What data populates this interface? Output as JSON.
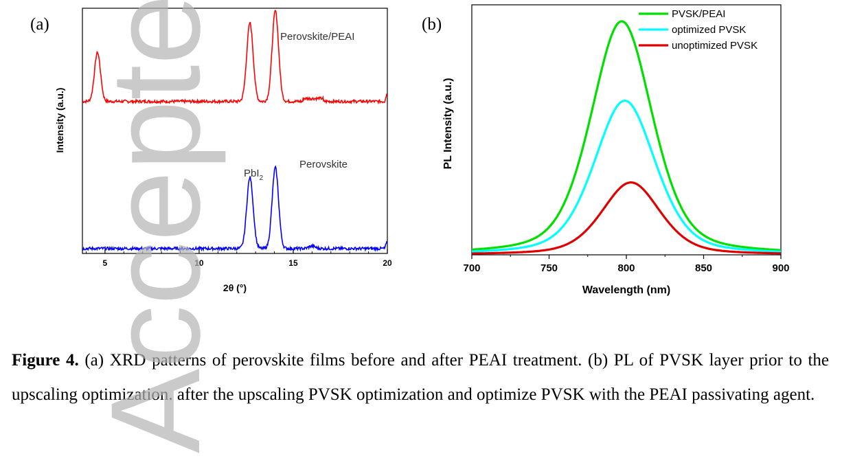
{
  "watermark": "Accepted",
  "panels": {
    "a": {
      "label": "(a)"
    },
    "b": {
      "label": "(b)"
    }
  },
  "chart_data": [
    {
      "type": "line",
      "panel": "a",
      "xlabel": "2θ (°)",
      "ylabel": "Intensity (a.u.)",
      "xlim": [
        3.8,
        20
      ],
      "xticks": [
        5,
        10,
        15,
        20
      ],
      "yticks": "none",
      "annotations": [
        "Perovskite/PEAI",
        "Perovskite",
        "PbI2"
      ],
      "series": [
        {
          "name": "Perovskite/PEAI",
          "color": "#ff0000",
          "baseline": 0.62,
          "peaks": [
            [
              4.6,
              0.2
            ],
            [
              12.7,
              0.32
            ],
            [
              14.05,
              0.37
            ]
          ]
        },
        {
          "name": "Perovskite",
          "color": "#0000ff",
          "baseline": 0.02,
          "peaks": [
            [
              12.7,
              0.29
            ],
            [
              14.05,
              0.33
            ],
            [
              16.0,
              0.01
            ]
          ]
        }
      ],
      "grid": false
    },
    {
      "type": "line",
      "panel": "b",
      "xlabel": "Wavelength (nm)",
      "ylabel": "PL Intensity (a.u.)",
      "xlim": [
        700,
        900
      ],
      "xticks": [
        700,
        750,
        800,
        850,
        900
      ],
      "legend_position": "top-right",
      "series": [
        {
          "name": "PVSK/PEAI",
          "color": "#00e000",
          "peak_x": 797,
          "peak_y": 1.0
        },
        {
          "name": "optimized PVSK",
          "color": "#00ffff",
          "peak_x": 799,
          "peak_y": 0.66
        },
        {
          "name": "unoptimized PVSK",
          "color": "#e00000",
          "peak_x": 803,
          "peak_y": 0.31
        }
      ],
      "grid": false
    }
  ],
  "caption": {
    "figure_label": "Figure 4.",
    "text": " (a) XRD patterns of perovskite films before and after PEAI treatment. (b) PL of PVSK layer prior to the upscaling optimization. after the upscaling PVSK optimization and optimize PVSK with the PEAI passivating agent."
  }
}
